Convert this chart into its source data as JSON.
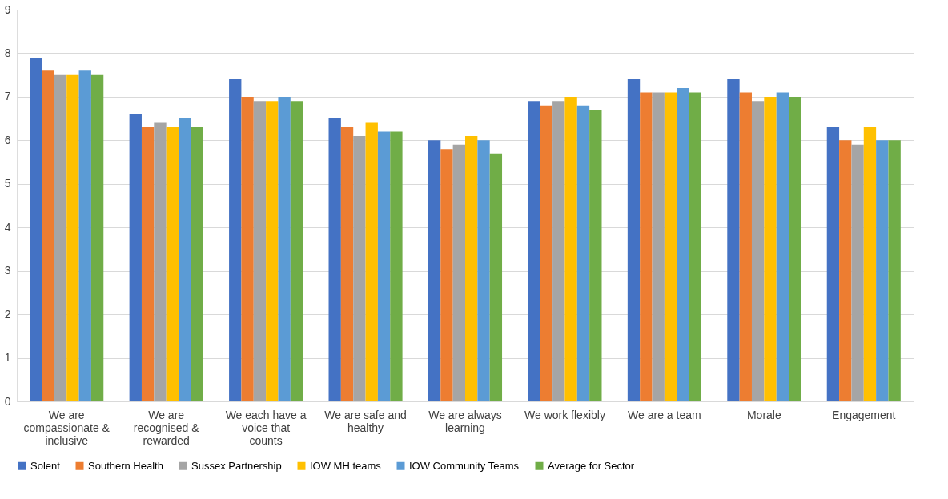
{
  "chart_data": {
    "type": "bar",
    "categories": [
      "We are compassionate & inclusive",
      "We are recognised & rewarded",
      "We each have a voice that counts",
      "We are safe and healthy",
      "We are always learning",
      "We work flexibly",
      "We are a team",
      "Morale",
      "Engagement"
    ],
    "series": [
      {
        "name": "Solent",
        "color": "#4472c4",
        "values": [
          7.9,
          6.6,
          7.4,
          6.5,
          6.0,
          6.9,
          7.4,
          7.4,
          6.3
        ]
      },
      {
        "name": "Southern Health",
        "color": "#ed7d31",
        "values": [
          7.6,
          6.3,
          7.0,
          6.3,
          5.8,
          6.8,
          7.1,
          7.1,
          6.0
        ]
      },
      {
        "name": "Sussex Partnership",
        "color": "#a5a5a5",
        "values": [
          7.5,
          6.4,
          6.9,
          6.1,
          5.9,
          6.9,
          7.1,
          6.9,
          5.9
        ]
      },
      {
        "name": "IOW MH teams",
        "color": "#ffc000",
        "values": [
          7.5,
          6.3,
          6.9,
          6.4,
          6.1,
          7.0,
          7.1,
          7.0,
          6.3
        ]
      },
      {
        "name": "IOW Community Teams",
        "color": "#5b9bd5",
        "values": [
          7.6,
          6.5,
          7.0,
          6.2,
          6.0,
          6.8,
          7.2,
          7.1,
          6.0
        ]
      },
      {
        "name": "Average for Sector",
        "color": "#70ad47",
        "values": [
          7.5,
          6.3,
          6.9,
          6.2,
          5.7,
          6.7,
          7.1,
          7.0,
          6.0
        ]
      }
    ],
    "ylim": [
      0,
      9
    ],
    "yticks": [
      0,
      1,
      2,
      3,
      4,
      5,
      6,
      7,
      8,
      9
    ],
    "grid": "y",
    "legend": "bottom"
  }
}
